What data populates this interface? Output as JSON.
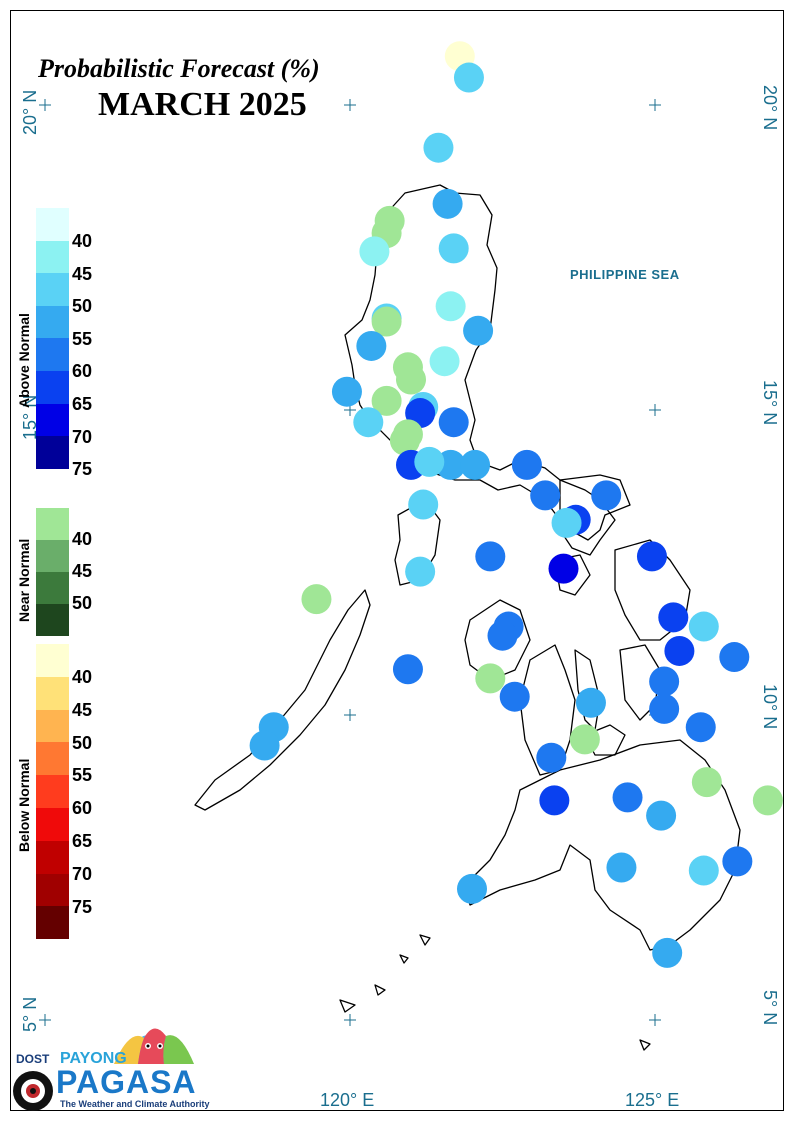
{
  "title": "Probabilistic Forecast (%)",
  "subtitle": "MARCH 2025",
  "latitudes": [
    "20° N",
    "15° N",
    "10° N",
    "5° N"
  ],
  "longitudes": [
    "120° E",
    "125° E"
  ],
  "sea_label": "PHILIPPINE SEA",
  "legend": {
    "above_normal": {
      "title": "Above Normal",
      "labels": [
        "40",
        "45",
        "50",
        "55",
        "60",
        "65",
        "70",
        "75"
      ],
      "colors": [
        "#e0ffff",
        "#8cf2f2",
        "#5ad2f5",
        "#35aaf0",
        "#1e78f0",
        "#0a41f0",
        "#0000e6",
        "#000099"
      ]
    },
    "near_normal": {
      "title": "Near Normal",
      "labels": [
        "40",
        "45",
        "50"
      ],
      "colors": [
        "#a0e696",
        "#6aae6a",
        "#3c7a3c",
        "#1e461e"
      ]
    },
    "below_normal": {
      "title": "Below Normal",
      "labels": [
        "40",
        "45",
        "50",
        "55",
        "60",
        "65",
        "70",
        "75"
      ],
      "colors": [
        "#ffffd2",
        "#ffe178",
        "#ffb450",
        "#ff7832",
        "#ff3c1e",
        "#f00a0a",
        "#c00000",
        "#a00000",
        "#640000"
      ]
    }
  },
  "stations": [
    {
      "lat": 20.8,
      "lon": 121.8,
      "category": "below",
      "pct": 40
    },
    {
      "lat": 20.45,
      "lon": 121.95,
      "category": "above",
      "pct": 50
    },
    {
      "lat": 19.3,
      "lon": 121.45,
      "category": "above",
      "pct": 50
    },
    {
      "lat": 18.38,
      "lon": 121.6,
      "category": "above",
      "pct": 55
    },
    {
      "lat": 18.1,
      "lon": 120.65,
      "category": "near",
      "pct": 40
    },
    {
      "lat": 17.9,
      "lon": 120.6,
      "category": "near",
      "pct": 40
    },
    {
      "lat": 17.6,
      "lon": 120.4,
      "category": "above",
      "pct": 45
    },
    {
      "lat": 17.65,
      "lon": 121.7,
      "category": "above",
      "pct": 50
    },
    {
      "lat": 16.7,
      "lon": 121.65,
      "category": "above",
      "pct": 45
    },
    {
      "lat": 16.5,
      "lon": 120.6,
      "category": "above",
      "pct": 50
    },
    {
      "lat": 16.45,
      "lon": 120.6,
      "category": "near",
      "pct": 40
    },
    {
      "lat": 16.3,
      "lon": 122.1,
      "category": "above",
      "pct": 55
    },
    {
      "lat": 16.05,
      "lon": 120.35,
      "category": "above",
      "pct": 55
    },
    {
      "lat": 15.8,
      "lon": 121.55,
      "category": "above",
      "pct": 45
    },
    {
      "lat": 15.7,
      "lon": 120.95,
      "category": "near",
      "pct": 40
    },
    {
      "lat": 15.5,
      "lon": 121.0,
      "category": "near",
      "pct": 40
    },
    {
      "lat": 15.3,
      "lon": 119.95,
      "category": "above",
      "pct": 55
    },
    {
      "lat": 15.15,
      "lon": 120.6,
      "category": "near",
      "pct": 40
    },
    {
      "lat": 15.05,
      "lon": 121.2,
      "category": "above",
      "pct": 50
    },
    {
      "lat": 14.95,
      "lon": 121.15,
      "category": "above",
      "pct": 65
    },
    {
      "lat": 14.8,
      "lon": 121.7,
      "category": "above",
      "pct": 60
    },
    {
      "lat": 14.8,
      "lon": 120.3,
      "category": "above",
      "pct": 50
    },
    {
      "lat": 14.6,
      "lon": 120.95,
      "category": "near",
      "pct": 40
    },
    {
      "lat": 14.5,
      "lon": 120.9,
      "category": "near",
      "pct": 40
    },
    {
      "lat": 14.1,
      "lon": 121.0,
      "category": "above",
      "pct": 65
    },
    {
      "lat": 14.1,
      "lon": 121.65,
      "category": "above",
      "pct": 55
    },
    {
      "lat": 14.15,
      "lon": 121.3,
      "category": "above",
      "pct": 50
    },
    {
      "lat": 14.1,
      "lon": 122.05,
      "category": "above",
      "pct": 55
    },
    {
      "lat": 14.1,
      "lon": 122.9,
      "category": "above",
      "pct": 60
    },
    {
      "lat": 13.6,
      "lon": 123.2,
      "category": "above",
      "pct": 60
    },
    {
      "lat": 13.6,
      "lon": 124.2,
      "category": "above",
      "pct": 60
    },
    {
      "lat": 13.45,
      "lon": 121.2,
      "category": "above",
      "pct": 50
    },
    {
      "lat": 13.2,
      "lon": 123.7,
      "category": "above",
      "pct": 65
    },
    {
      "lat": 13.15,
      "lon": 123.55,
      "category": "above",
      "pct": 50
    },
    {
      "lat": 12.6,
      "lon": 122.3,
      "category": "above",
      "pct": 60
    },
    {
      "lat": 12.6,
      "lon": 124.95,
      "category": "above",
      "pct": 65
    },
    {
      "lat": 12.4,
      "lon": 123.5,
      "category": "above",
      "pct": 70
    },
    {
      "lat": 12.35,
      "lon": 121.15,
      "category": "above",
      "pct": 50
    },
    {
      "lat": 11.9,
      "lon": 119.45,
      "category": "near",
      "pct": 40
    },
    {
      "lat": 11.6,
      "lon": 125.3,
      "category": "above",
      "pct": 65
    },
    {
      "lat": 11.45,
      "lon": 125.8,
      "category": "above",
      "pct": 50
    },
    {
      "lat": 11.45,
      "lon": 122.6,
      "category": "above",
      "pct": 60
    },
    {
      "lat": 11.3,
      "lon": 122.5,
      "category": "above",
      "pct": 60
    },
    {
      "lat": 11.05,
      "lon": 125.4,
      "category": "above",
      "pct": 65
    },
    {
      "lat": 10.95,
      "lon": 126.3,
      "category": "above",
      "pct": 60
    },
    {
      "lat": 10.75,
      "lon": 120.95,
      "category": "above",
      "pct": 60
    },
    {
      "lat": 10.6,
      "lon": 122.3,
      "category": "near",
      "pct": 40
    },
    {
      "lat": 10.55,
      "lon": 125.15,
      "category": "above",
      "pct": 60
    },
    {
      "lat": 10.3,
      "lon": 122.7,
      "category": "above",
      "pct": 60
    },
    {
      "lat": 10.2,
      "lon": 123.95,
      "category": "above",
      "pct": 55
    },
    {
      "lat": 10.1,
      "lon": 125.15,
      "category": "above",
      "pct": 60
    },
    {
      "lat": 9.8,
      "lon": 125.75,
      "category": "above",
      "pct": 60
    },
    {
      "lat": 9.8,
      "lon": 118.75,
      "category": "above",
      "pct": 55
    },
    {
      "lat": 9.6,
      "lon": 123.85,
      "category": "near",
      "pct": 40
    },
    {
      "lat": 9.5,
      "lon": 118.6,
      "category": "above",
      "pct": 55
    },
    {
      "lat": 9.3,
      "lon": 123.3,
      "category": "above",
      "pct": 60
    },
    {
      "lat": 8.9,
      "lon": 125.85,
      "category": "near",
      "pct": 40
    },
    {
      "lat": 8.6,
      "lon": 126.85,
      "category": "near",
      "pct": 40
    },
    {
      "lat": 8.65,
      "lon": 124.55,
      "category": "above",
      "pct": 60
    },
    {
      "lat": 8.6,
      "lon": 123.35,
      "category": "above",
      "pct": 65
    },
    {
      "lat": 8.35,
      "lon": 125.1,
      "category": "above",
      "pct": 55
    },
    {
      "lat": 7.6,
      "lon": 126.35,
      "category": "above",
      "pct": 60
    },
    {
      "lat": 7.5,
      "lon": 124.45,
      "category": "above",
      "pct": 55
    },
    {
      "lat": 7.45,
      "lon": 125.8,
      "category": "above",
      "pct": 50
    },
    {
      "lat": 7.15,
      "lon": 122.0,
      "category": "above",
      "pct": 55
    },
    {
      "lat": 6.1,
      "lon": 125.2,
      "category": "above",
      "pct": 55
    }
  ],
  "logo": {
    "agency": "DOST",
    "line1": "PAYONG",
    "line2": "PAGASA",
    "tagline": "The Weather and Climate Authority"
  }
}
